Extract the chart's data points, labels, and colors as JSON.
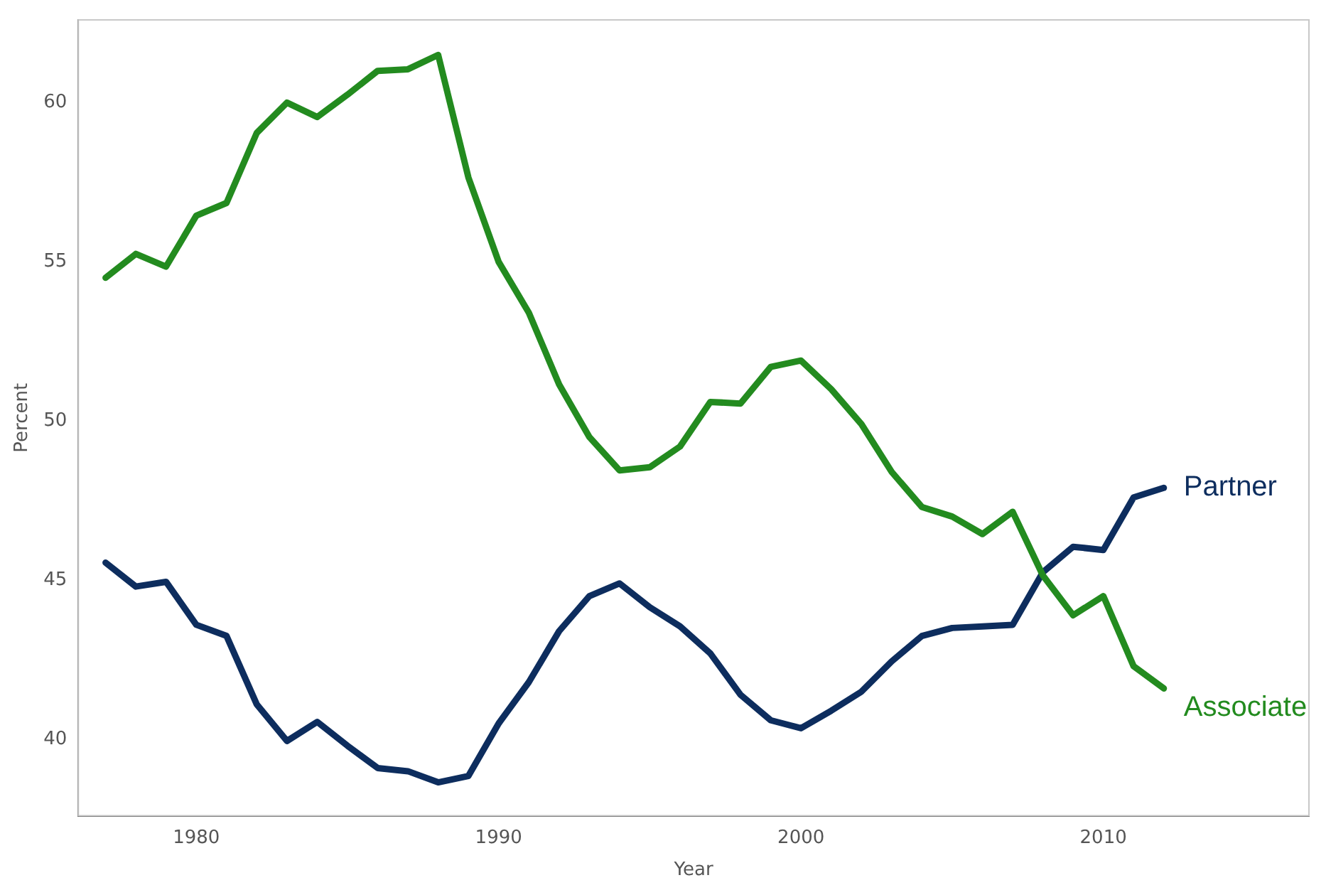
{
  "chart_data": {
    "type": "line",
    "xlabel": "Year",
    "ylabel": "Percent",
    "x": [
      1977,
      1978,
      1979,
      1980,
      1981,
      1982,
      1983,
      1984,
      1985,
      1986,
      1987,
      1988,
      1989,
      1990,
      1991,
      1992,
      1993,
      1994,
      1995,
      1996,
      1997,
      1998,
      1999,
      2000,
      2001,
      2002,
      2003,
      2004,
      2005,
      2006,
      2007,
      2008,
      2009,
      2010,
      2011,
      2012
    ],
    "series": [
      {
        "name": "Associate",
        "color": "#238b1f",
        "values": [
          54.5,
          55.25,
          54.85,
          56.45,
          56.85,
          59.05,
          60.0,
          59.55,
          60.25,
          61.0,
          61.05,
          61.5,
          57.65,
          55.0,
          53.4,
          51.15,
          49.5,
          48.45,
          48.55,
          49.2,
          50.6,
          50.55,
          51.7,
          51.9,
          51.0,
          49.9,
          48.4,
          47.3,
          47.0,
          46.45,
          47.15,
          45.15,
          43.9,
          44.5,
          42.3,
          41.6
        ]
      },
      {
        "name": "Partner",
        "color": "#0d2d5e",
        "values": [
          45.55,
          44.8,
          44.95,
          43.6,
          43.25,
          41.1,
          39.95,
          40.55,
          39.8,
          39.1,
          39.0,
          38.65,
          38.85,
          40.5,
          41.8,
          43.4,
          44.5,
          44.9,
          44.15,
          43.55,
          42.7,
          41.4,
          40.6,
          40.35,
          40.9,
          41.5,
          42.45,
          43.25,
          43.5,
          43.55,
          43.6,
          45.25,
          46.05,
          45.95,
          47.6,
          47.9
        ]
      }
    ],
    "xlim": [
      1976.1,
      2016.8
    ],
    "xticks": [
      1980,
      1990,
      2000,
      2010
    ],
    "ylim": [
      37.6,
      62.6
    ],
    "yticks": [
      40,
      45,
      50,
      55,
      60
    ],
    "grid": false,
    "legend": false,
    "marker": "none",
    "line_style": "solid"
  }
}
